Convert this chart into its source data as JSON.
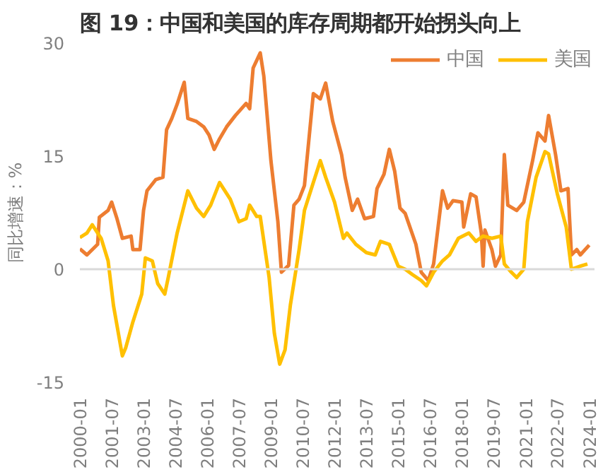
{
  "chart_data": {
    "type": "line",
    "title": "图 19：中国和美国的库存周期都开始拐头向上",
    "ylabel": "同比增速：%",
    "ylim": [
      -15,
      30
    ],
    "yticks": [
      -15,
      0,
      15,
      30
    ],
    "xlim": [
      "2000-01",
      "2024-04"
    ],
    "xticks": [
      "2000-01",
      "2001-07",
      "2003-01",
      "2004-07",
      "2006-01",
      "2007-07",
      "2009-01",
      "2010-07",
      "2012-01",
      "2013-07",
      "2015-01",
      "2016-07",
      "2018-01",
      "2019-07",
      "2021-01",
      "2022-07",
      "2024-01"
    ],
    "grid": false,
    "legend": "top right",
    "line_style": "solid",
    "ref_lines": [
      {
        "axis": "y",
        "value": 0,
        "color": "#d9d9d9"
      }
    ],
    "series": [
      {
        "name": "中国",
        "color": "#ed7d31",
        "x": [
          "2000-01",
          "2000-05",
          "2000-11",
          "2000-12",
          "2001-05",
          "2001-07",
          "2001-10",
          "2002-01",
          "2002-06",
          "2002-07",
          "2002-11",
          "2003-01",
          "2003-03",
          "2003-08",
          "2003-12",
          "2004-02",
          "2004-05",
          "2004-08",
          "2004-12",
          "2005-02",
          "2005-07",
          "2005-11",
          "2006-02",
          "2006-05",
          "2006-08",
          "2006-12",
          "2007-05",
          "2007-11",
          "2008-01",
          "2008-03",
          "2008-07",
          "2008-09",
          "2009-01",
          "2009-05",
          "2009-07",
          "2009-11",
          "2010-02",
          "2010-05",
          "2010-08",
          "2011-01",
          "2011-05",
          "2011-08",
          "2011-12",
          "2012-05",
          "2012-07",
          "2012-11",
          "2013-02",
          "2013-06",
          "2013-11",
          "2014-01",
          "2014-05",
          "2014-08",
          "2014-11",
          "2015-02",
          "2015-05",
          "2015-11",
          "2016-02",
          "2016-06",
          "2016-09",
          "2017-02",
          "2017-05",
          "2017-08",
          "2018-01",
          "2018-02",
          "2018-06",
          "2018-09",
          "2018-12",
          "2019-01",
          "2019-02",
          "2019-06",
          "2019-08",
          "2019-11",
          "2020-01",
          "2020-03",
          "2020-08",
          "2020-12",
          "2021-05",
          "2021-08",
          "2021-12",
          "2022-02",
          "2022-06",
          "2022-09",
          "2023-01",
          "2023-03",
          "2023-06",
          "2023-08",
          "2024-01"
        ],
        "values": [
          2.7,
          1.9,
          3.3,
          6.9,
          7.8,
          8.9,
          6.7,
          4.1,
          4.4,
          2.6,
          2.6,
          7.8,
          10.4,
          11.9,
          12.2,
          18.5,
          20,
          21.9,
          24.8,
          20,
          19.6,
          18.9,
          17.8,
          15.9,
          17.3,
          18.9,
          20.4,
          22,
          21.3,
          26.7,
          28.7,
          25.6,
          14.4,
          6.3,
          -0.4,
          0.5,
          8.5,
          9.3,
          11.1,
          23.3,
          22.6,
          24.7,
          19.6,
          15.2,
          12.2,
          7.8,
          9.3,
          6.7,
          7,
          10.7,
          12.6,
          15.9,
          13,
          8.1,
          7.4,
          3.3,
          -0.4,
          -1.5,
          0.7,
          10.4,
          8.1,
          9.1,
          8.9,
          5.6,
          10,
          9.6,
          4.8,
          0.4,
          5.2,
          2.6,
          0.4,
          1.9,
          15.2,
          8.5,
          7.8,
          8.9,
          14.4,
          18.1,
          17,
          20.4,
          15.2,
          10.4,
          10.7,
          1.9,
          2.6,
          1.9,
          3.2
        ]
      },
      {
        "name": "美国",
        "color": "#ffc000",
        "x": [
          "2000-01",
          "2000-05",
          "2000-08",
          "2001-01",
          "2001-05",
          "2001-08",
          "2002-01",
          "2002-03",
          "2002-07",
          "2002-12",
          "2003-02",
          "2003-06",
          "2003-09",
          "2004-01",
          "2004-03",
          "2004-08",
          "2005-02",
          "2005-07",
          "2005-11",
          "2006-03",
          "2006-08",
          "2007-02",
          "2007-07",
          "2007-11",
          "2008-01",
          "2008-05",
          "2008-07",
          "2008-12",
          "2009-03",
          "2009-06",
          "2009-09",
          "2009-12",
          "2010-03",
          "2010-05",
          "2010-08",
          "2011-01",
          "2011-05",
          "2011-08",
          "2012-01",
          "2012-06",
          "2012-08",
          "2013-01",
          "2013-07",
          "2013-12",
          "2014-03",
          "2014-08",
          "2015-01",
          "2015-05",
          "2015-09",
          "2016-02",
          "2016-05",
          "2016-09",
          "2017-02",
          "2017-06",
          "2017-11",
          "2018-05",
          "2018-09",
          "2019-01",
          "2019-06",
          "2019-11",
          "2020-01",
          "2020-05",
          "2020-08",
          "2020-12",
          "2021-02",
          "2021-07",
          "2021-12",
          "2022-02",
          "2022-07",
          "2022-12",
          "2023-03",
          "2023-08",
          "2023-12"
        ],
        "values": [
          4.2,
          4.8,
          5.9,
          4.1,
          1.1,
          -4.8,
          -11.5,
          -10.4,
          -7,
          -3.3,
          1.5,
          1.1,
          -1.9,
          -3.3,
          -1.1,
          4.8,
          10.4,
          8.1,
          7,
          8.5,
          11.5,
          9.3,
          6.3,
          6.7,
          8.5,
          7,
          7,
          -1.1,
          -8.5,
          -12.6,
          -10.7,
          -4.8,
          -0.4,
          2.6,
          7.8,
          11.5,
          14.4,
          12.2,
          8.9,
          4.1,
          4.8,
          3.3,
          2.2,
          1.9,
          3.7,
          3.3,
          0.4,
          0,
          -0.7,
          -1.5,
          -2.2,
          -0.4,
          1.1,
          1.9,
          4.1,
          4.8,
          3.7,
          4.4,
          4.1,
          4.4,
          0.7,
          -0.4,
          -1.1,
          0,
          6.3,
          12.2,
          15.6,
          15.3,
          10,
          5.6,
          0,
          0.4,
          0.7
        ]
      }
    ]
  }
}
